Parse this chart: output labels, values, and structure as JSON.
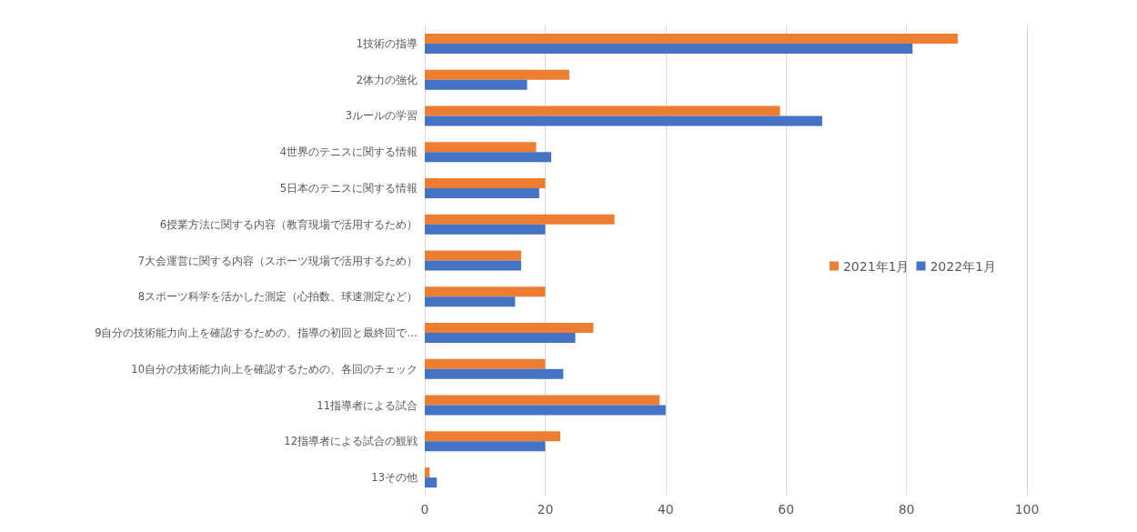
{
  "chart_data": {
    "type": "bar",
    "orientation": "horizontal",
    "categories": [
      "1技術の指導",
      "2体力の強化",
      "3ルールの学習",
      "4世界のテニスに関する情報",
      "5日本のテニスに関する情報",
      "6授業方法に関する内容（教育現場で活用するため）",
      "7大会運営に関する内容（スポーツ現場で活用するため）",
      "8スポーツ科学を活かした測定（心拍数、球速測定など）",
      "9自分の技術能力向上を確認するための、指導の初回と最終回で…",
      "10自分の技術能力向上を確認するための、各回のチェック",
      "11指導者による試合",
      "12指導者による試合の観戦",
      "13その他"
    ],
    "series": [
      {
        "name": "2021年1月",
        "color": "#ed7d31",
        "values": [
          88.5,
          24,
          59,
          18.5,
          20,
          31.5,
          16,
          20,
          28,
          20,
          39,
          22.5,
          0.8
        ]
      },
      {
        "name": "2022年1月",
        "color": "#4472c4",
        "values": [
          81,
          17,
          66,
          21,
          19,
          20,
          16,
          15,
          25,
          23,
          40,
          20,
          2
        ]
      }
    ],
    "xlim": [
      0,
      100
    ],
    "xticks": [
      0,
      20,
      40,
      60,
      80,
      100
    ],
    "grid": "x",
    "legend": "right"
  }
}
